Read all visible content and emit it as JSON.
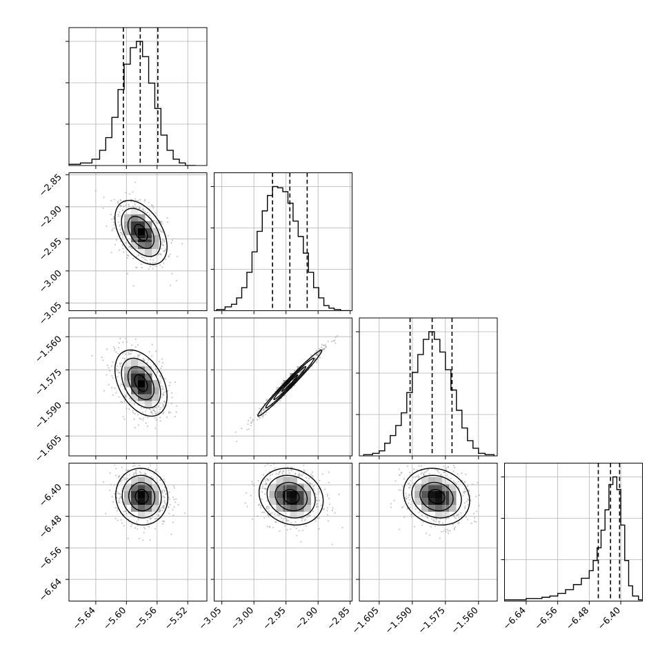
{
  "chart_data": {
    "type": "corner",
    "colors": {
      "hist": "#000000",
      "points": "#9a9a9a",
      "contour": "#000000",
      "grid": "#b0b0b0"
    },
    "grid": true,
    "parameters": [
      {
        "range": [
          -5.675,
          -5.495
        ],
        "ticks": [
          "−5.64",
          "−5.60",
          "−5.56",
          "−5.52"
        ],
        "tick_values": [
          -5.64,
          -5.6,
          -5.56,
          -5.52
        ]
      },
      {
        "range": [
          -3.062,
          -2.847
        ],
        "ticks": [
          "−3.05",
          "−3.00",
          "−2.95",
          "−2.90",
          "−2.85"
        ],
        "tick_values": [
          -3.05,
          -3.0,
          -2.95,
          -2.9,
          -2.85
        ]
      },
      {
        "range": [
          -1.614,
          -1.5515
        ],
        "ticks": [
          "−1.605",
          "−1.590",
          "−1.575",
          "−1.560"
        ],
        "tick_values": [
          -1.605,
          -1.59,
          -1.575,
          -1.56
        ]
      },
      {
        "range": [
          -6.695,
          -6.345
        ],
        "ticks": [
          "−6.64",
          "−6.56",
          "−6.48",
          "−6.40"
        ],
        "tick_values": [
          -6.64,
          -6.56,
          -6.48,
          -6.4
        ]
      }
    ],
    "medians": [
      -5.582,
      -2.944,
      -1.581,
      -6.426
    ],
    "quantile_16": [
      -5.604,
      -2.971,
      -1.591,
      -6.457
    ],
    "quantile_84": [
      -5.559,
      -2.917,
      -1.572,
      -6.403
    ],
    "marginals": [
      {
        "edges": [
          -5.675,
          -5.66,
          -5.645,
          -5.635,
          -5.627,
          -5.619,
          -5.611,
          -5.603,
          -5.595,
          -5.587,
          -5.579,
          -5.571,
          -5.563,
          -5.555,
          -5.547,
          -5.539,
          -5.531,
          -5.523,
          -5.51
        ],
        "counts": [
          1,
          2,
          5,
          12,
          22,
          38,
          60,
          80,
          93,
          98,
          86,
          65,
          45,
          24,
          12,
          5,
          2,
          0
        ]
      },
      {
        "edges": [
          -3.058,
          -3.045,
          -3.035,
          -3.027,
          -3.019,
          -3.011,
          -3.003,
          -2.995,
          -2.987,
          -2.979,
          -2.971,
          -2.963,
          -2.955,
          -2.947,
          -2.939,
          -2.931,
          -2.923,
          -2.915,
          -2.907,
          -2.899,
          -2.891,
          -2.883,
          -2.875,
          -2.865,
          -2.85
        ],
        "counts": [
          1,
          3,
          5,
          10,
          18,
          30,
          46,
          62,
          78,
          90,
          97,
          96,
          93,
          84,
          70,
          58,
          45,
          30,
          18,
          10,
          4,
          2,
          1,
          0
        ]
      },
      {
        "edges": [
          -1.612,
          -1.608,
          -1.605,
          -1.6025,
          -1.6,
          -1.5975,
          -1.595,
          -1.5925,
          -1.59,
          -1.5875,
          -1.585,
          -1.5825,
          -1.58,
          -1.5775,
          -1.575,
          -1.5725,
          -1.57,
          -1.5675,
          -1.565,
          -1.5625,
          -1.56,
          -1.557,
          -1.553
        ],
        "counts": [
          1,
          2,
          4,
          10,
          16,
          24,
          34,
          50,
          66,
          80,
          92,
          98,
          92,
          82,
          68,
          52,
          36,
          22,
          12,
          6,
          2,
          1
        ]
      },
      {
        "edges": [
          -6.695,
          -6.64,
          -6.6,
          -6.58,
          -6.56,
          -6.54,
          -6.52,
          -6.5,
          -6.48,
          -6.47,
          -6.46,
          -6.45,
          -6.44,
          -6.43,
          -6.42,
          -6.41,
          -6.4,
          -6.39,
          -6.38,
          -6.37,
          -6.355,
          -6.345
        ],
        "counts": [
          1,
          2,
          3,
          4,
          6,
          9,
          13,
          18,
          24,
          32,
          42,
          56,
          72,
          92,
          98,
          88,
          60,
          32,
          12,
          4,
          1
        ]
      }
    ],
    "pairs": [
      {
        "row": 1,
        "col": 0,
        "rho": -0.45,
        "center": [
          -5.581,
          -2.94
        ],
        "sigma": [
          0.017,
          0.025
        ],
        "density_peak": [
          -5.577,
          -2.941
        ]
      },
      {
        "row": 2,
        "col": 0,
        "rho": -0.4,
        "center": [
          -5.581,
          -1.581
        ],
        "sigma": [
          0.017,
          0.0075
        ],
        "density_peak": [
          -5.581,
          -1.5815
        ]
      },
      {
        "row": 2,
        "col": 1,
        "rho": 0.985,
        "center": [
          -2.944,
          -1.581
        ],
        "sigma": [
          0.025,
          0.0075
        ],
        "density_peak": [
          -2.943,
          -1.5805
        ]
      },
      {
        "row": 3,
        "col": 0,
        "rho": -0.05,
        "center": [
          -5.58,
          -6.43
        ],
        "sigma": [
          0.017,
          0.036
        ],
        "density_peak": [
          -5.579,
          -6.412
        ]
      },
      {
        "row": 3,
        "col": 1,
        "rho": -0.15,
        "center": [
          -2.942,
          -6.43
        ],
        "sigma": [
          0.025,
          0.036
        ],
        "density_peak": [
          -2.946,
          -6.408
        ]
      },
      {
        "row": 3,
        "col": 2,
        "rho": -0.15,
        "center": [
          -1.579,
          -6.43
        ],
        "sigma": [
          0.0075,
          0.036
        ],
        "density_peak": [
          -1.579,
          -6.409
        ]
      }
    ]
  }
}
